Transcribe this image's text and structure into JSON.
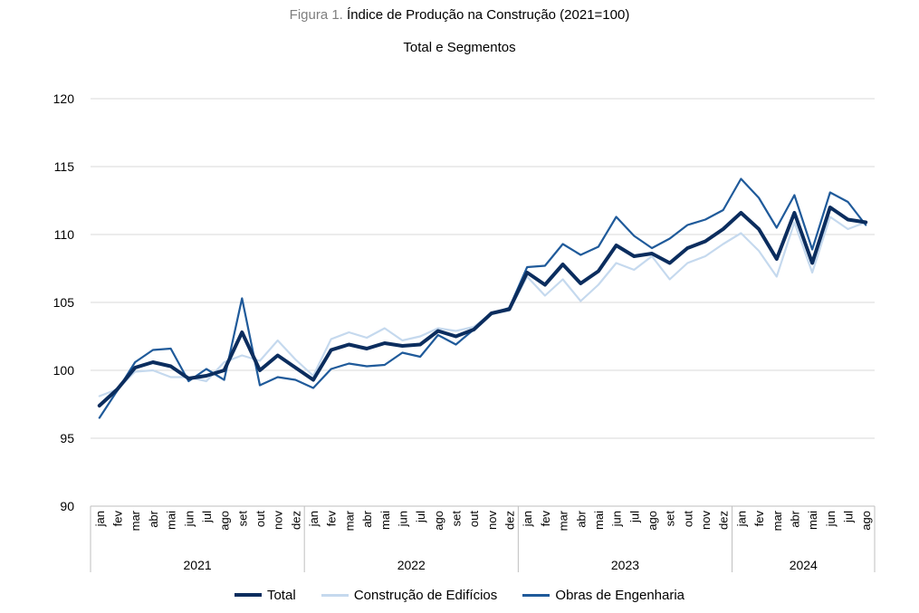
{
  "figure": {
    "prefix": "Figura 1.",
    "title": "Índice de Produção na Construção (2021=100)",
    "subtitle": "Total e Segmentos"
  },
  "colors": {
    "total": "#0b2d5e",
    "edificios": "#c5d9ee",
    "engenharia": "#1f5a9a",
    "grid": "#d9d9d9"
  },
  "chart_data": {
    "type": "line",
    "title": "Índice de Produção na Construção (2021=100)",
    "subtitle": "Total e Segmentos",
    "ylim": [
      90,
      120
    ],
    "yticks": [
      90,
      95,
      100,
      105,
      110,
      115,
      120
    ],
    "grid": true,
    "legend_position": "bottom",
    "months": [
      "jan",
      "fev",
      "mar",
      "abr",
      "mai",
      "jun",
      "jul",
      "ago",
      "set",
      "out",
      "nov",
      "dez"
    ],
    "years": [
      "2021",
      "2022",
      "2023",
      "2024"
    ],
    "x": [
      "jan",
      "fev",
      "mar",
      "abr",
      "mai",
      "jun",
      "jul",
      "ago",
      "set",
      "out",
      "nov",
      "dez",
      "jan",
      "fev",
      "mar",
      "abr",
      "mai",
      "jun",
      "jul",
      "ago",
      "set",
      "out",
      "nov",
      "dez",
      "jan",
      "fev",
      "mar",
      "abr",
      "mai",
      "jun",
      "jul",
      "ago",
      "set",
      "out",
      "nov",
      "dez",
      "jan",
      "fev",
      "mar",
      "abr",
      "mai",
      "jun",
      "jul",
      "ago"
    ],
    "series": [
      {
        "name": "Total",
        "key": "total",
        "values": [
          97.4,
          98.6,
          100.2,
          100.6,
          100.3,
          99.4,
          99.6,
          100.0,
          102.8,
          100.0,
          101.1,
          100.2,
          99.3,
          101.5,
          101.9,
          101.6,
          102.0,
          101.8,
          101.9,
          102.9,
          102.5,
          103.0,
          104.2,
          104.5,
          107.2,
          106.3,
          107.8,
          106.4,
          107.3,
          109.2,
          108.4,
          108.6,
          107.9,
          109.0,
          109.5,
          110.4,
          111.6,
          110.4,
          108.2,
          111.6,
          107.9,
          112.0,
          111.1,
          110.9
        ]
      },
      {
        "name": "Construção de Edifícios",
        "key": "edificios",
        "values": [
          98.1,
          98.6,
          99.9,
          100.0,
          99.5,
          99.5,
          99.2,
          100.6,
          101.1,
          100.7,
          102.2,
          100.8,
          99.6,
          102.3,
          102.8,
          102.4,
          103.1,
          102.2,
          102.5,
          103.1,
          102.9,
          103.2,
          104.2,
          104.4,
          106.9,
          105.5,
          106.7,
          105.1,
          106.3,
          107.9,
          107.4,
          108.4,
          106.7,
          107.9,
          108.4,
          109.3,
          110.1,
          108.8,
          106.9,
          110.9,
          107.2,
          111.3,
          110.4,
          110.9
        ]
      },
      {
        "name": "Obras de Engenharia",
        "key": "engenharia",
        "values": [
          96.5,
          98.5,
          100.6,
          101.5,
          101.6,
          99.2,
          100.1,
          99.3,
          105.3,
          98.9,
          99.5,
          99.3,
          98.7,
          100.1,
          100.5,
          100.3,
          100.4,
          101.3,
          101.0,
          102.6,
          101.9,
          103.0,
          104.2,
          104.6,
          107.6,
          107.7,
          109.3,
          108.5,
          109.1,
          111.3,
          109.9,
          109.0,
          109.7,
          110.7,
          111.1,
          111.8,
          114.1,
          112.7,
          110.5,
          112.9,
          108.9,
          113.1,
          112.4,
          110.7
        ]
      }
    ]
  }
}
